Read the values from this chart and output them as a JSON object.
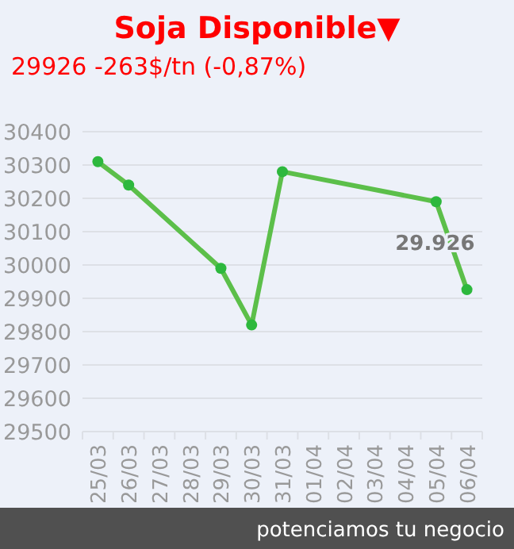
{
  "chart_data": {
    "type": "line",
    "title": "Soja Disponible▼",
    "subtitle": "29926 -263$/tn (-0,87%)",
    "categories": [
      "25/03",
      "26/03",
      "27/03",
      "28/03",
      "29/03",
      "30/03",
      "31/03",
      "01/04",
      "02/04",
      "03/04",
      "04/04",
      "05/04",
      "06/04"
    ],
    "series": [
      {
        "color": "#5cbf4a",
        "x": [
          "25/03",
          "26/03",
          "29/03",
          "30/03",
          "31/03",
          "05/04",
          "06/04"
        ],
        "values": [
          30310,
          30240,
          29990,
          29820,
          30280,
          30190,
          29926
        ],
        "value_labels": [
          null,
          null,
          null,
          null,
          null,
          null,
          "29.926"
        ]
      }
    ],
    "ylim": [
      29500,
      30400
    ],
    "yticks": [
      29500,
      29600,
      29700,
      29800,
      29900,
      30000,
      30100,
      30200,
      30300,
      30400
    ],
    "grid": "y",
    "marker": "circle",
    "line_style": "solid",
    "annotations": [
      "potenciamos tu negocio"
    ]
  }
}
